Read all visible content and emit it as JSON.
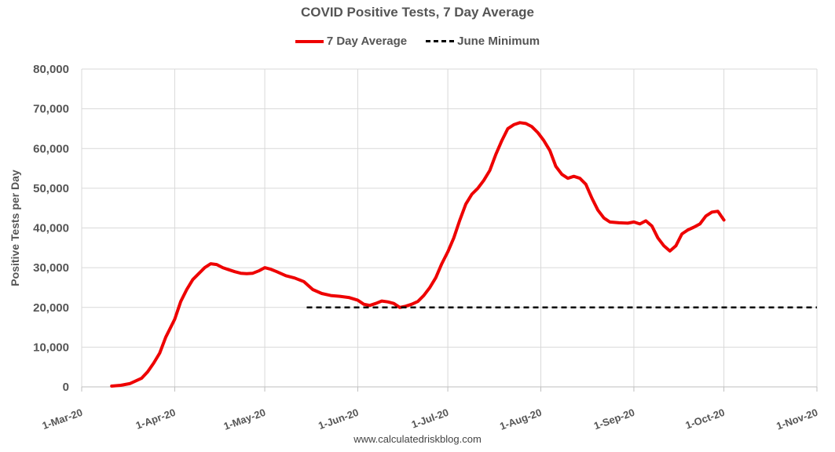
{
  "chart_data": {
    "type": "line",
    "title": "COVID Positive Tests, 7 Day Average",
    "xlabel": "",
    "ylabel": "Positive Tests per Day",
    "xlim": [
      "2020-03-01",
      "2020-11-01"
    ],
    "ylim": [
      0,
      80000
    ],
    "grid": true,
    "legend_position": "top-center",
    "x_tick_labels": [
      "1-Mar-20",
      "1-Apr-20",
      "1-May-20",
      "1-Jun-20",
      "1-Jul-20",
      "1-Aug-20",
      "1-Sep-20",
      "1-Oct-20",
      "1-Nov-20"
    ],
    "x_tick_dates": [
      "2020-03-01",
      "2020-04-01",
      "2020-05-01",
      "2020-06-01",
      "2020-07-01",
      "2020-08-01",
      "2020-09-01",
      "2020-10-01",
      "2020-11-01"
    ],
    "y_tick_labels": [
      "0",
      "10,000",
      "20,000",
      "30,000",
      "40,000",
      "50,000",
      "60,000",
      "70,000",
      "80,000"
    ],
    "y_tick_values": [
      0,
      10000,
      20000,
      30000,
      40000,
      50000,
      60000,
      70000,
      80000
    ],
    "series": [
      {
        "name": "7 Day Average",
        "color": "#ee0000",
        "style": "solid",
        "points": [
          [
            "2020-03-11",
            200
          ],
          [
            "2020-03-14",
            400
          ],
          [
            "2020-03-17",
            800
          ],
          [
            "2020-03-19",
            1500
          ],
          [
            "2020-03-21",
            2200
          ],
          [
            "2020-03-23",
            3800
          ],
          [
            "2020-03-25",
            6000
          ],
          [
            "2020-03-27",
            8500
          ],
          [
            "2020-03-29",
            12500
          ],
          [
            "2020-04-01",
            17000
          ],
          [
            "2020-04-03",
            21500
          ],
          [
            "2020-04-05",
            24500
          ],
          [
            "2020-04-07",
            27000
          ],
          [
            "2020-04-09",
            28500
          ],
          [
            "2020-04-11",
            30000
          ],
          [
            "2020-04-13",
            31000
          ],
          [
            "2020-04-15",
            30800
          ],
          [
            "2020-04-17",
            30000
          ],
          [
            "2020-04-19",
            29500
          ],
          [
            "2020-04-21",
            29000
          ],
          [
            "2020-04-23",
            28600
          ],
          [
            "2020-04-25",
            28500
          ],
          [
            "2020-04-27",
            28600
          ],
          [
            "2020-04-29",
            29200
          ],
          [
            "2020-05-01",
            30000
          ],
          [
            "2020-05-03",
            29600
          ],
          [
            "2020-05-05",
            29000
          ],
          [
            "2020-05-08",
            28000
          ],
          [
            "2020-05-11",
            27400
          ],
          [
            "2020-05-14",
            26500
          ],
          [
            "2020-05-17",
            24500
          ],
          [
            "2020-05-20",
            23500
          ],
          [
            "2020-05-23",
            23000
          ],
          [
            "2020-05-26",
            22800
          ],
          [
            "2020-05-29",
            22500
          ],
          [
            "2020-06-01",
            21800
          ],
          [
            "2020-06-03",
            20800
          ],
          [
            "2020-06-05",
            20500
          ],
          [
            "2020-06-07",
            21000
          ],
          [
            "2020-06-09",
            21600
          ],
          [
            "2020-06-11",
            21400
          ],
          [
            "2020-06-13",
            21000
          ],
          [
            "2020-06-15",
            20000
          ],
          [
            "2020-06-17",
            20300
          ],
          [
            "2020-06-19",
            20800
          ],
          [
            "2020-06-21",
            21500
          ],
          [
            "2020-06-23",
            23000
          ],
          [
            "2020-06-25",
            25000
          ],
          [
            "2020-06-27",
            27500
          ],
          [
            "2020-06-29",
            31000
          ],
          [
            "2020-07-01",
            34000
          ],
          [
            "2020-07-03",
            37500
          ],
          [
            "2020-07-05",
            42000
          ],
          [
            "2020-07-07",
            46000
          ],
          [
            "2020-07-09",
            48500
          ],
          [
            "2020-07-11",
            50000
          ],
          [
            "2020-07-13",
            52000
          ],
          [
            "2020-07-15",
            54500
          ],
          [
            "2020-07-17",
            58500
          ],
          [
            "2020-07-19",
            62000
          ],
          [
            "2020-07-21",
            65000
          ],
          [
            "2020-07-23",
            66000
          ],
          [
            "2020-07-25",
            66500
          ],
          [
            "2020-07-27",
            66300
          ],
          [
            "2020-07-29",
            65500
          ],
          [
            "2020-07-31",
            64000
          ],
          [
            "2020-08-02",
            62000
          ],
          [
            "2020-08-04",
            59500
          ],
          [
            "2020-08-06",
            55500
          ],
          [
            "2020-08-08",
            53500
          ],
          [
            "2020-08-10",
            52500
          ],
          [
            "2020-08-12",
            53000
          ],
          [
            "2020-08-14",
            52500
          ],
          [
            "2020-08-16",
            51000
          ],
          [
            "2020-08-18",
            47500
          ],
          [
            "2020-08-20",
            44500
          ],
          [
            "2020-08-22",
            42500
          ],
          [
            "2020-08-24",
            41500
          ],
          [
            "2020-08-27",
            41300
          ],
          [
            "2020-08-30",
            41200
          ],
          [
            "2020-09-01",
            41500
          ],
          [
            "2020-09-03",
            41000
          ],
          [
            "2020-09-05",
            41800
          ],
          [
            "2020-09-07",
            40500
          ],
          [
            "2020-09-09",
            37500
          ],
          [
            "2020-09-11",
            35500
          ],
          [
            "2020-09-13",
            34200
          ],
          [
            "2020-09-15",
            35500
          ],
          [
            "2020-09-17",
            38500
          ],
          [
            "2020-09-19",
            39500
          ],
          [
            "2020-09-21",
            40200
          ],
          [
            "2020-09-23",
            41000
          ],
          [
            "2020-09-25",
            43000
          ],
          [
            "2020-09-27",
            44000
          ],
          [
            "2020-09-29",
            44200
          ],
          [
            "2020-10-01",
            42000
          ]
        ]
      },
      {
        "name": "June Minimum",
        "color": "#000000",
        "style": "dashed",
        "points": [
          [
            "2020-05-15",
            20000
          ],
          [
            "2020-11-01",
            20000
          ]
        ]
      }
    ],
    "source_text": "www.calculatedriskblog.com"
  }
}
